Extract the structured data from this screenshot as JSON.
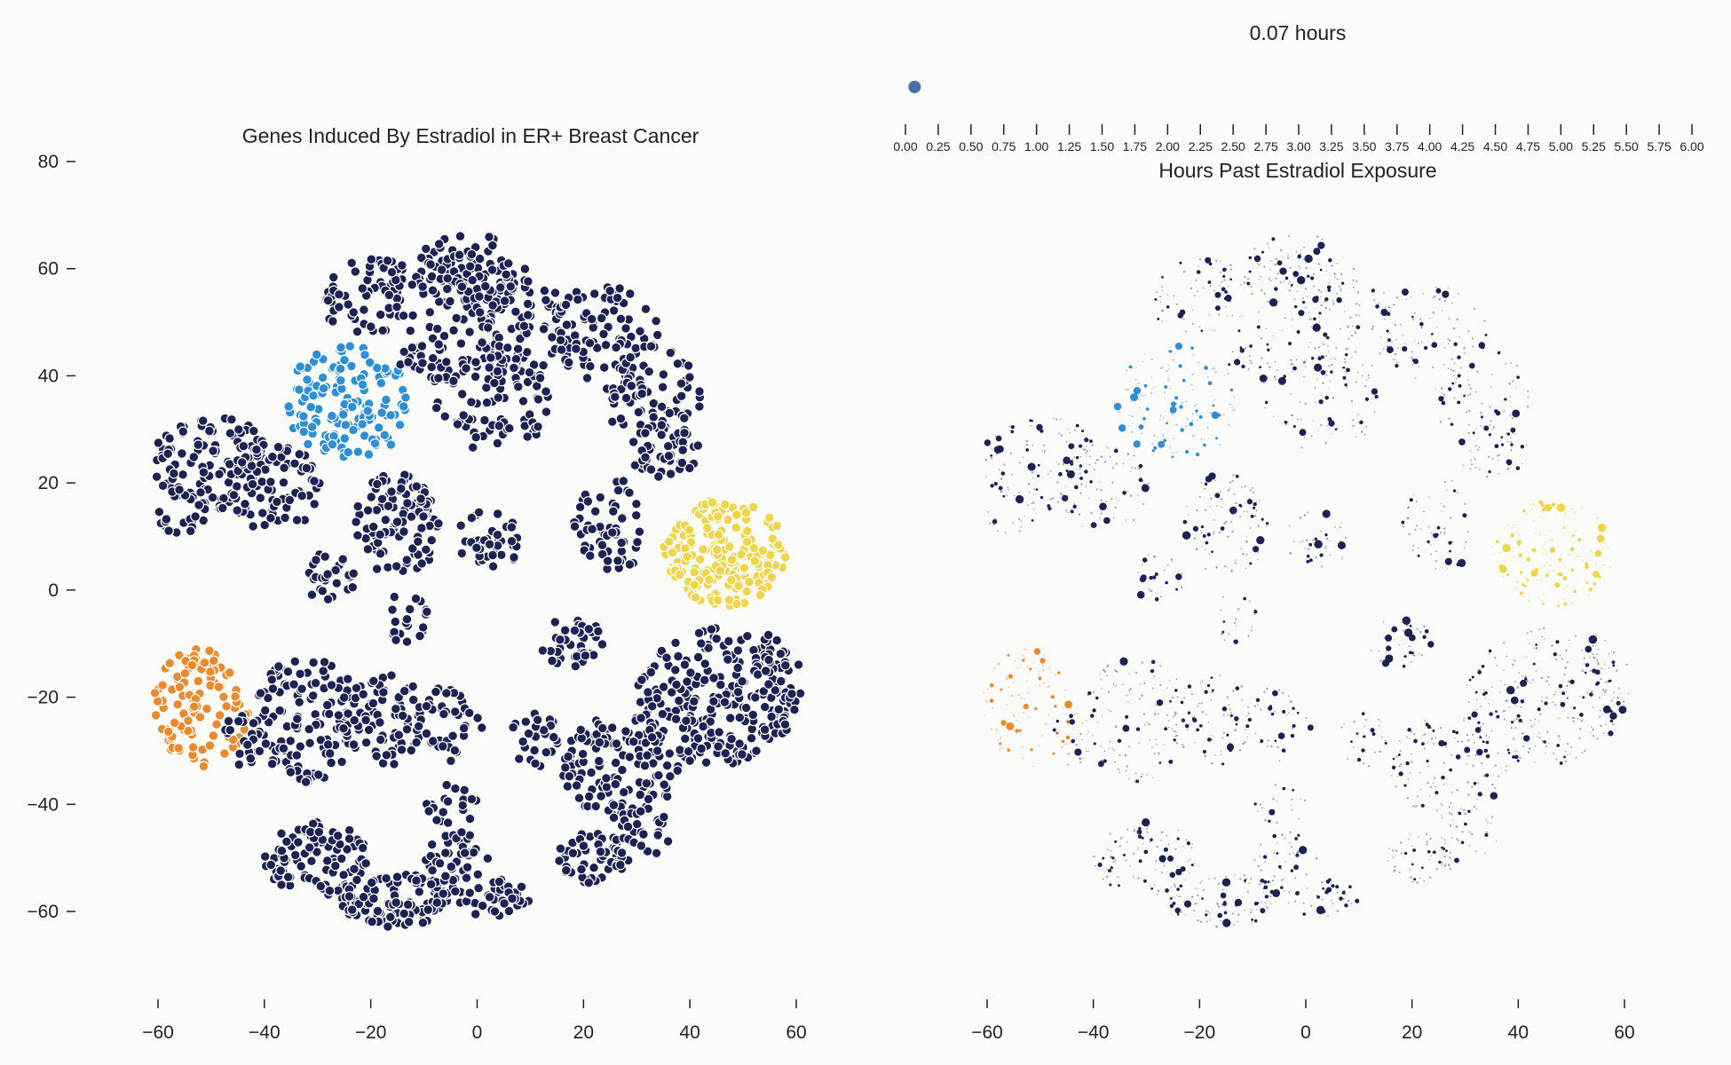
{
  "chart_data": [
    {
      "type": "scatter",
      "title": "Genes Induced By Estradiol in ER+ Breast Cancer",
      "xlim": [
        -65,
        65
      ],
      "ylim": [
        -75,
        82
      ],
      "xticks": [
        -60,
        -40,
        -20,
        0,
        20,
        40,
        60
      ],
      "yticks": [
        80,
        60,
        40,
        20,
        0,
        -20,
        -40,
        -60
      ],
      "grid": false,
      "legend": "none",
      "series": [
        {
          "color": "#1c2354",
          "cluster": "main",
          "approx_points": 1900
        },
        {
          "color": "#2e8fd6",
          "cluster": "upper-left",
          "center": [
            -24,
            34
          ],
          "approx_points": 140
        },
        {
          "color": "#f0d54a",
          "cluster": "right",
          "center": [
            47,
            7
          ],
          "approx_points": 190
        },
        {
          "color": "#ea8a2e",
          "cluster": "lower-left",
          "center": [
            -52,
            -21
          ],
          "approx_points": 110
        }
      ]
    },
    {
      "type": "scatter",
      "title": "",
      "xlim": [
        -65,
        65
      ],
      "ylim": [
        -75,
        82
      ],
      "xticks": [
        -60,
        -40,
        -20,
        0,
        20,
        40,
        60
      ],
      "grid": false,
      "legend": "none",
      "note_sizes": "point size encodes expression at selected time",
      "series": [
        {
          "color": "#1c2354",
          "cluster": "main"
        },
        {
          "color": "#2e8fd6",
          "cluster": "upper-left"
        },
        {
          "color": "#f0d54a",
          "cluster": "right"
        },
        {
          "color": "#ea8a2e",
          "cluster": "lower-left"
        }
      ]
    }
  ],
  "slider": {
    "label": "0.07 hours",
    "value": 0.07,
    "min": 0,
    "max": 6,
    "ticks": [
      "0.00",
      "0.25",
      "0.50",
      "0.75",
      "1.00",
      "1.25",
      "1.50",
      "1.75",
      "2.00",
      "2.25",
      "2.50",
      "2.75",
      "3.00",
      "3.25",
      "3.50",
      "3.75",
      "4.00",
      "4.25",
      "4.50",
      "4.75",
      "5.00",
      "5.25",
      "5.50",
      "5.75",
      "6.00"
    ],
    "axis_label": "Hours Past Estradiol Exposure",
    "handle_color": "#4a6fb0"
  }
}
